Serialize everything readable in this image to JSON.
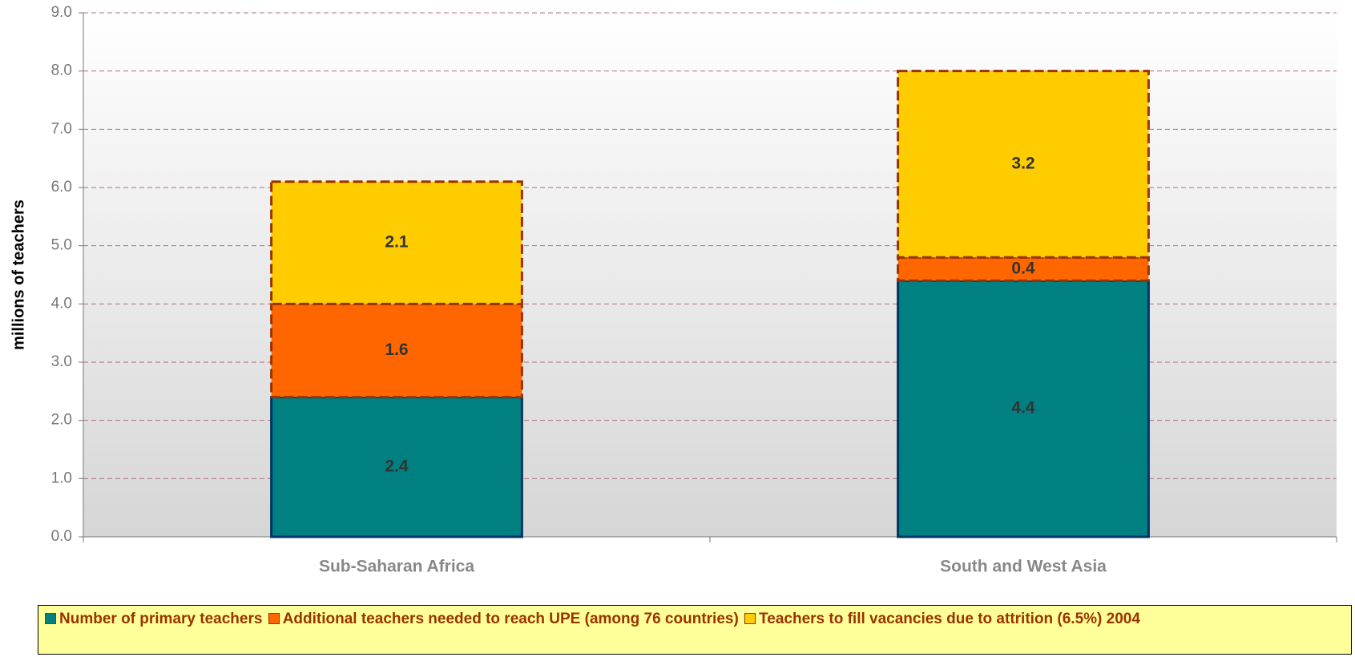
{
  "chart_data": {
    "type": "bar",
    "stacked": true,
    "y_label": "millions of teachers",
    "categories": [
      "Sub-Saharan Africa",
      "South and West Asia"
    ],
    "series": [
      {
        "name": "Number of primary teachers",
        "color": "#008080",
        "values": [
          2.4,
          4.4
        ]
      },
      {
        "name": "Additional teachers needed to reach UPE (among 76 countries)",
        "color": "#ff6600",
        "values": [
          1.6,
          0.4
        ]
      },
      {
        "name": "Teachers to fill vacancies due to attrition (6.5%) 2004",
        "color": "#ffcc00",
        "values": [
          2.1,
          3.2
        ]
      }
    ],
    "ylim": [
      0,
      9
    ],
    "yticks": [
      {
        "value": 0,
        "label": "0.0"
      },
      {
        "value": 1,
        "label": "1.0"
      },
      {
        "value": 2,
        "label": "2.0"
      },
      {
        "value": 3,
        "label": "3.0"
      },
      {
        "value": 4,
        "label": "4.0"
      },
      {
        "value": 5,
        "label": "5.0"
      },
      {
        "value": 6,
        "label": "6.0"
      },
      {
        "value": 7,
        "label": "7.0"
      },
      {
        "value": 8,
        "label": "8.0"
      },
      {
        "value": 9,
        "label": "9.0"
      }
    ],
    "grid": true,
    "legend": "bottom"
  }
}
